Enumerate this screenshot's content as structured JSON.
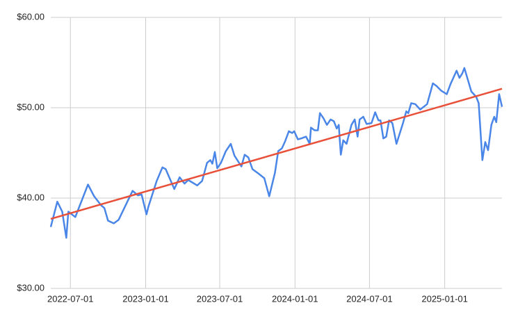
{
  "chart_data": {
    "type": "line",
    "x": [
      "2022-05-14",
      "2022-05-30",
      "2022-06-11",
      "2022-06-21",
      "2022-06-26",
      "2022-07-13",
      "2022-08-13",
      "2022-08-28",
      "2022-09-14",
      "2022-09-22",
      "2022-10-01",
      "2022-10-15",
      "2022-10-27",
      "2022-11-30",
      "2022-12-13",
      "2022-12-22",
      "2023-01-03",
      "2023-01-08",
      "2023-01-28",
      "2023-02-11",
      "2023-02-19",
      "2023-03-12",
      "2023-03-25",
      "2023-04-06",
      "2023-04-15",
      "2023-05-07",
      "2023-05-19",
      "2023-05-31",
      "2023-06-08",
      "2023-06-13",
      "2023-06-19",
      "2023-06-25",
      "2023-07-04",
      "2023-07-16",
      "2023-07-28",
      "2023-08-06",
      "2023-08-23",
      "2023-08-31",
      "2023-09-09",
      "2023-09-19",
      "2023-10-04",
      "2023-10-18",
      "2023-10-30",
      "2023-11-13",
      "2023-11-21",
      "2023-11-30",
      "2023-12-08",
      "2023-12-17",
      "2023-12-25",
      "2023-12-30",
      "2024-01-08",
      "2024-01-16",
      "2024-01-28",
      "2024-02-06",
      "2024-02-09",
      "2024-02-18",
      "2024-02-26",
      "2024-03-02",
      "2024-03-11",
      "2024-03-19",
      "2024-03-28",
      "2024-04-05",
      "2024-04-12",
      "2024-04-17",
      "2024-04-22",
      "2024-04-28",
      "2024-05-06",
      "2024-05-18",
      "2024-05-26",
      "2024-06-02",
      "2024-06-07",
      "2024-06-16",
      "2024-06-24",
      "2024-07-06",
      "2024-07-15",
      "2024-07-23",
      "2024-07-28",
      "2024-08-04",
      "2024-08-11",
      "2024-08-18",
      "2024-08-26",
      "2024-09-05",
      "2024-09-21",
      "2024-09-29",
      "2024-10-04",
      "2024-10-11",
      "2024-10-21",
      "2024-11-02",
      "2024-11-19",
      "2024-12-03",
      "2024-12-12",
      "2024-12-23",
      "2025-01-06",
      "2025-01-15",
      "2025-01-21",
      "2025-01-30",
      "2025-02-06",
      "2025-02-13",
      "2025-02-18",
      "2025-03-07",
      "2025-03-19",
      "2025-03-25",
      "2025-04-03",
      "2025-04-10",
      "2025-04-17",
      "2025-04-25",
      "2025-05-02",
      "2025-05-07",
      "2025-05-14",
      "2025-05-21"
    ],
    "series": [
      {
        "color": "#4a86e8",
        "values": [
          36.8,
          39.6,
          38.5,
          35.6,
          38.5,
          37.9,
          41.5,
          40.2,
          39.2,
          38.9,
          37.5,
          37.2,
          37.6,
          40.8,
          40.3,
          40.4,
          38.2,
          39.1,
          41.9,
          43.4,
          43.2,
          41.0,
          42.3,
          41.6,
          42.0,
          41.4,
          41.9,
          43.9,
          44.2,
          43.8,
          45.1,
          43.3,
          43.9,
          45.2,
          46.0,
          44.7,
          43.5,
          44.8,
          44.5,
          43.2,
          42.7,
          42.2,
          40.2,
          42.8,
          45.2,
          45.5,
          46.3,
          47.4,
          47.2,
          47.4,
          46.5,
          46.6,
          46.8,
          46.0,
          47.8,
          47.5,
          47.5,
          49.4,
          48.8,
          48.1,
          48.7,
          48.5,
          47.7,
          48.1,
          44.8,
          46.4,
          46.0,
          48.1,
          48.7,
          46.8,
          48.7,
          49.0,
          48.2,
          48.3,
          49.5,
          48.6,
          48.6,
          46.6,
          46.8,
          48.6,
          48.3,
          46.0,
          48.3,
          49.6,
          49.4,
          50.5,
          50.4,
          49.8,
          50.4,
          52.7,
          52.4,
          51.9,
          51.5,
          52.6,
          53.2,
          54.1,
          53.3,
          53.8,
          54.4,
          51.8,
          51.2,
          50.5,
          44.2,
          46.2,
          45.3,
          48.1,
          49.0,
          48.4,
          51.5,
          50.1
        ]
      }
    ],
    "trendline": {
      "color": "#e8503a",
      "x": [
        "2022-05-14",
        "2025-05-21"
      ],
      "values": [
        37.7,
        52.1
      ]
    },
    "xlim": [
      "2022-05-14",
      "2025-05-21"
    ],
    "xticks": [
      "2022-07-01",
      "2023-01-01",
      "2023-07-01",
      "2024-01-01",
      "2024-07-01",
      "2025-01-01"
    ],
    "ylim": [
      30,
      60
    ],
    "yticks": [
      {
        "value": 30,
        "label": "$30.00"
      },
      {
        "value": 40,
        "label": "$40.00"
      },
      {
        "value": 50,
        "label": "$50.00"
      },
      {
        "value": 60,
        "label": "$60.00"
      }
    ],
    "grid": true
  }
}
